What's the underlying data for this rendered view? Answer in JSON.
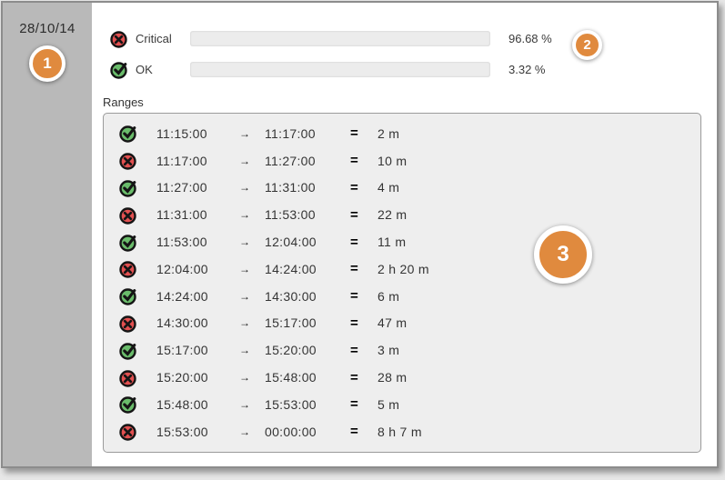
{
  "colors": {
    "accent_orange": "#e08a3e",
    "critical_red": "#ee1f1f",
    "ok_green": "#4cc319",
    "icon_red": "#e25050",
    "icon_green": "#6abc6b",
    "sidebar_gray": "#b9b9b9",
    "panel_bg": "#eeeeee"
  },
  "sidebar": {
    "date": "28/10/14",
    "badge": "1"
  },
  "summary": {
    "badge": "2",
    "rows": [
      {
        "status": "critical",
        "label": "Critical",
        "percent": 96.68,
        "percent_label": "96.68 %"
      },
      {
        "status": "ok",
        "label": "OK",
        "percent": 3.32,
        "percent_label": "3.32 %"
      }
    ]
  },
  "ranges": {
    "title": "Ranges",
    "badge": "3",
    "arrow_glyph": "→",
    "equals_glyph": "=",
    "rows": [
      {
        "status": "ok",
        "start": "11:15:00",
        "end": "11:17:00",
        "duration": "2 m"
      },
      {
        "status": "critical",
        "start": "11:17:00",
        "end": "11:27:00",
        "duration": "10 m"
      },
      {
        "status": "ok",
        "start": "11:27:00",
        "end": "11:31:00",
        "duration": "4 m"
      },
      {
        "status": "critical",
        "start": "11:31:00",
        "end": "11:53:00",
        "duration": "22 m"
      },
      {
        "status": "ok",
        "start": "11:53:00",
        "end": "12:04:00",
        "duration": "11 m"
      },
      {
        "status": "critical",
        "start": "12:04:00",
        "end": "14:24:00",
        "duration": "2 h 20 m"
      },
      {
        "status": "ok",
        "start": "14:24:00",
        "end": "14:30:00",
        "duration": "6 m"
      },
      {
        "status": "critical",
        "start": "14:30:00",
        "end": "15:17:00",
        "duration": "47 m"
      },
      {
        "status": "ok",
        "start": "15:17:00",
        "end": "15:20:00",
        "duration": "3 m"
      },
      {
        "status": "critical",
        "start": "15:20:00",
        "end": "15:48:00",
        "duration": "28 m"
      },
      {
        "status": "ok",
        "start": "15:48:00",
        "end": "15:53:00",
        "duration": "5 m"
      },
      {
        "status": "critical",
        "start": "15:53:00",
        "end": "00:00:00",
        "duration": "8 h 7 m"
      }
    ]
  }
}
